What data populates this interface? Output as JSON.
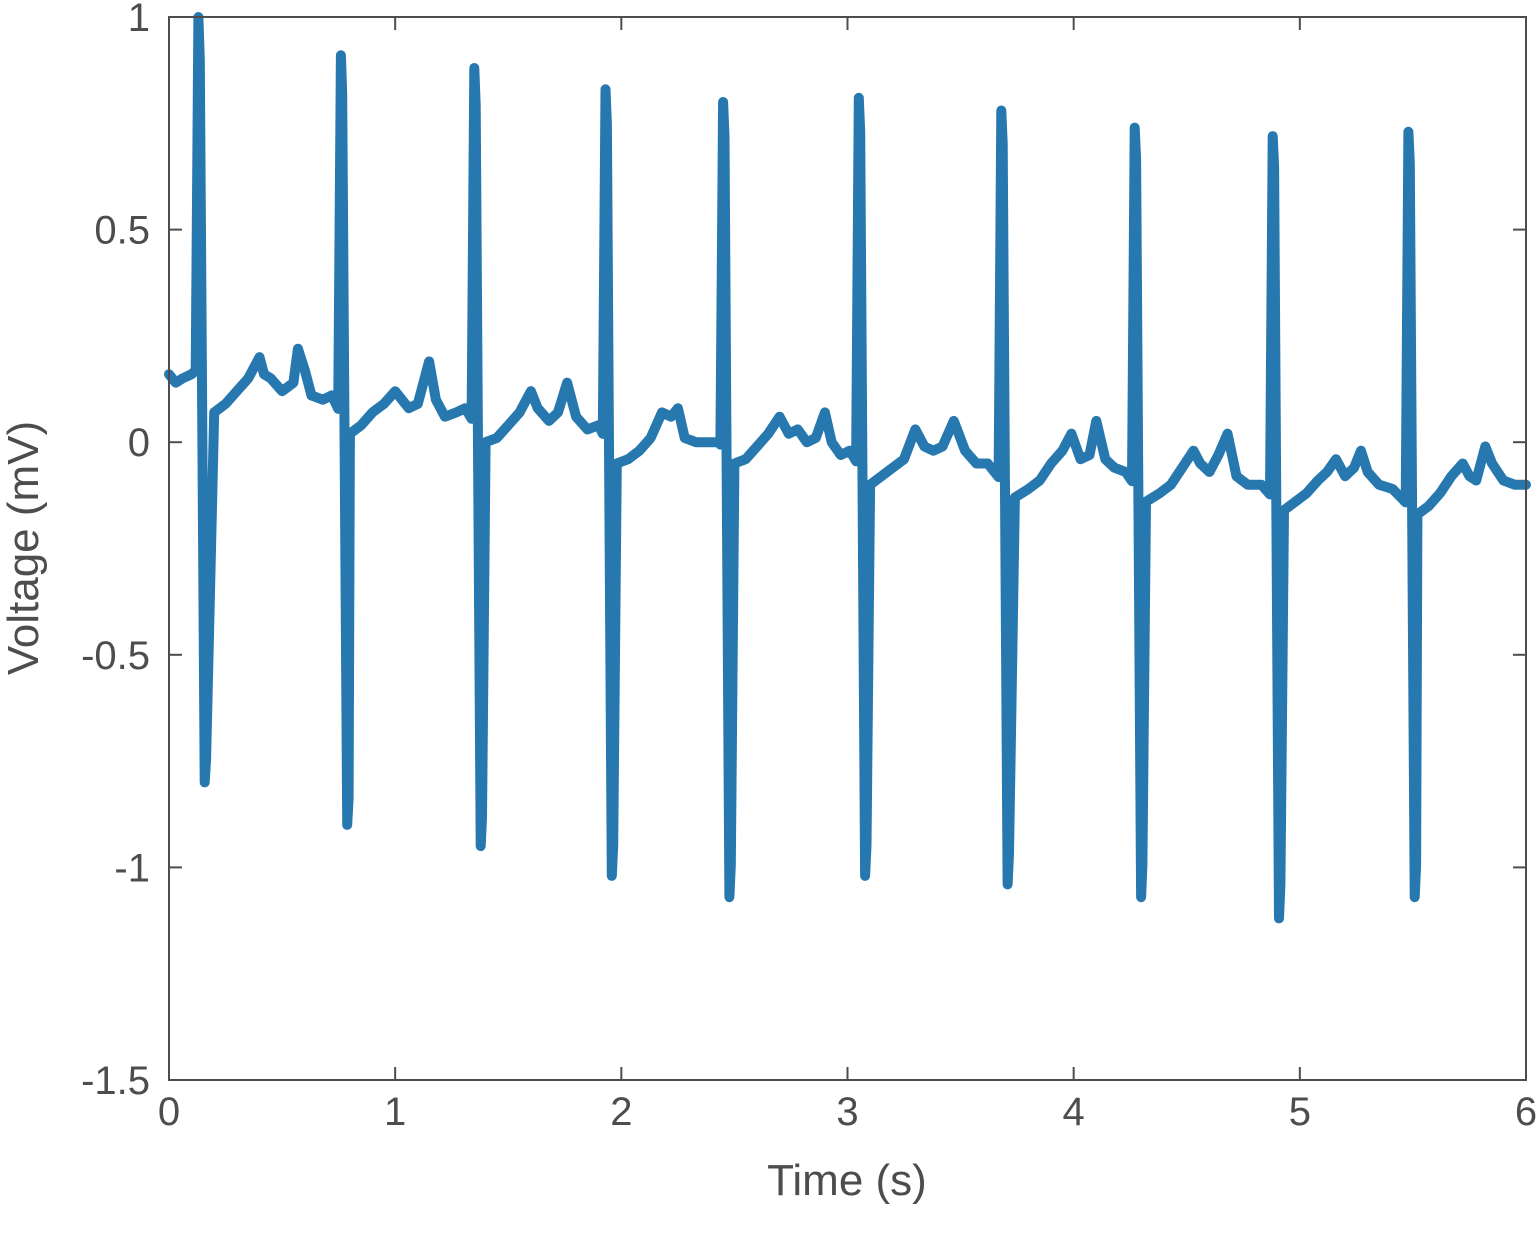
{
  "chart_data": {
    "type": "line",
    "title": "",
    "xlabel": "Time (s)",
    "ylabel": "Voltage (mV)",
    "xlim": [
      0,
      6
    ],
    "ylim": [
      -1.5,
      1
    ],
    "xticks": [
      0,
      1,
      2,
      3,
      4,
      5,
      6
    ],
    "xtick_labels": [
      "0",
      "1",
      "2",
      "3",
      "4",
      "5",
      "6"
    ],
    "yticks": [
      -1.5,
      -1,
      -0.5,
      0,
      0.5,
      1
    ],
    "ytick_labels": [
      "-1.5",
      "-1",
      "-0.5",
      "0",
      "0.5",
      "1"
    ],
    "grid": false,
    "line_color": "#2878b0",
    "axis_color": "#4d4d4d",
    "baseline": [
      [
        0.0,
        0.16
      ],
      [
        0.03,
        0.14
      ],
      [
        0.06,
        0.15
      ],
      [
        0.1,
        0.16
      ],
      [
        0.12,
        0.17
      ],
      [
        0.16,
        0.06
      ],
      [
        0.2,
        0.07
      ],
      [
        0.25,
        0.09
      ],
      [
        0.3,
        0.12
      ],
      [
        0.35,
        0.15
      ],
      [
        0.4,
        0.2
      ],
      [
        0.42,
        0.16
      ],
      [
        0.45,
        0.15
      ],
      [
        0.5,
        0.12
      ],
      [
        0.55,
        0.14
      ],
      [
        0.57,
        0.22
      ],
      [
        0.6,
        0.17
      ],
      [
        0.63,
        0.11
      ],
      [
        0.68,
        0.1
      ],
      [
        0.72,
        0.11
      ],
      [
        0.8,
        0.02
      ],
      [
        0.85,
        0.04
      ],
      [
        0.9,
        0.07
      ],
      [
        0.95,
        0.09
      ],
      [
        1.0,
        0.12
      ],
      [
        1.03,
        0.1
      ],
      [
        1.06,
        0.08
      ],
      [
        1.1,
        0.09
      ],
      [
        1.15,
        0.19
      ],
      [
        1.18,
        0.1
      ],
      [
        1.22,
        0.06
      ],
      [
        1.27,
        0.07
      ],
      [
        1.31,
        0.08
      ],
      [
        1.4,
        0.0
      ],
      [
        1.45,
        0.01
      ],
      [
        1.5,
        0.04
      ],
      [
        1.55,
        0.07
      ],
      [
        1.6,
        0.12
      ],
      [
        1.63,
        0.08
      ],
      [
        1.68,
        0.05
      ],
      [
        1.72,
        0.07
      ],
      [
        1.76,
        0.14
      ],
      [
        1.8,
        0.06
      ],
      [
        1.85,
        0.03
      ],
      [
        1.9,
        0.04
      ],
      [
        1.98,
        -0.05
      ],
      [
        2.03,
        -0.04
      ],
      [
        2.08,
        -0.02
      ],
      [
        2.13,
        0.01
      ],
      [
        2.18,
        0.07
      ],
      [
        2.22,
        0.06
      ],
      [
        2.25,
        0.08
      ],
      [
        2.28,
        0.01
      ],
      [
        2.33,
        0.0
      ],
      [
        2.38,
        0.0
      ],
      [
        2.43,
        0.0
      ],
      [
        2.5,
        -0.05
      ],
      [
        2.55,
        -0.04
      ],
      [
        2.6,
        -0.01
      ],
      [
        2.65,
        0.02
      ],
      [
        2.7,
        0.06
      ],
      [
        2.74,
        0.02
      ],
      [
        2.78,
        0.03
      ],
      [
        2.82,
        0.0
      ],
      [
        2.86,
        0.01
      ],
      [
        2.9,
        0.07
      ],
      [
        2.93,
        0.0
      ],
      [
        2.97,
        -0.03
      ],
      [
        3.01,
        -0.02
      ],
      [
        3.1,
        -0.1
      ],
      [
        3.15,
        -0.08
      ],
      [
        3.2,
        -0.06
      ],
      [
        3.25,
        -0.04
      ],
      [
        3.3,
        0.03
      ],
      [
        3.34,
        -0.01
      ],
      [
        3.38,
        -0.02
      ],
      [
        3.42,
        -0.01
      ],
      [
        3.47,
        0.05
      ],
      [
        3.52,
        -0.02
      ],
      [
        3.57,
        -0.05
      ],
      [
        3.62,
        -0.05
      ],
      [
        3.74,
        -0.13
      ],
      [
        3.8,
        -0.11
      ],
      [
        3.85,
        -0.09
      ],
      [
        3.9,
        -0.05
      ],
      [
        3.95,
        -0.02
      ],
      [
        3.99,
        0.02
      ],
      [
        4.03,
        -0.04
      ],
      [
        4.07,
        -0.03
      ],
      [
        4.1,
        0.05
      ],
      [
        4.14,
        -0.04
      ],
      [
        4.18,
        -0.06
      ],
      [
        4.23,
        -0.07
      ],
      [
        4.32,
        -0.14
      ],
      [
        4.38,
        -0.12
      ],
      [
        4.43,
        -0.1
      ],
      [
        4.48,
        -0.06
      ],
      [
        4.53,
        -0.02
      ],
      [
        4.56,
        -0.05
      ],
      [
        4.6,
        -0.07
      ],
      [
        4.64,
        -0.03
      ],
      [
        4.68,
        0.02
      ],
      [
        4.72,
        -0.08
      ],
      [
        4.77,
        -0.1
      ],
      [
        4.83,
        -0.1
      ],
      [
        4.93,
        -0.16
      ],
      [
        4.98,
        -0.14
      ],
      [
        5.03,
        -0.12
      ],
      [
        5.08,
        -0.09
      ],
      [
        5.12,
        -0.07
      ],
      [
        5.16,
        -0.04
      ],
      [
        5.2,
        -0.08
      ],
      [
        5.24,
        -0.06
      ],
      [
        5.27,
        -0.02
      ],
      [
        5.3,
        -0.07
      ],
      [
        5.35,
        -0.1
      ],
      [
        5.41,
        -0.11
      ],
      [
        5.52,
        -0.17
      ],
      [
        5.57,
        -0.15
      ],
      [
        5.62,
        -0.12
      ],
      [
        5.67,
        -0.08
      ],
      [
        5.72,
        -0.05
      ],
      [
        5.75,
        -0.08
      ],
      [
        5.78,
        -0.09
      ],
      [
        5.82,
        -0.01
      ],
      [
        5.85,
        -0.05
      ],
      [
        5.9,
        -0.09
      ],
      [
        5.95,
        -0.1
      ],
      [
        6.0,
        -0.1
      ]
    ],
    "beats": [
      {
        "t": 0.13,
        "peak": 1.0,
        "trough": -0.8
      },
      {
        "t": 0.76,
        "peak": 0.91,
        "trough": -0.9
      },
      {
        "t": 1.35,
        "peak": 0.88,
        "trough": -0.95
      },
      {
        "t": 1.93,
        "peak": 0.83,
        "trough": -1.02
      },
      {
        "t": 2.45,
        "peak": 0.8,
        "trough": -1.07
      },
      {
        "t": 3.05,
        "peak": 0.81,
        "trough": -1.02
      },
      {
        "t": 3.68,
        "peak": 0.78,
        "trough": -1.04
      },
      {
        "t": 4.27,
        "peak": 0.74,
        "trough": -1.07
      },
      {
        "t": 4.88,
        "peak": 0.72,
        "trough": -1.12
      },
      {
        "t": 5.48,
        "peak": 0.73,
        "trough": -1.07
      }
    ]
  }
}
